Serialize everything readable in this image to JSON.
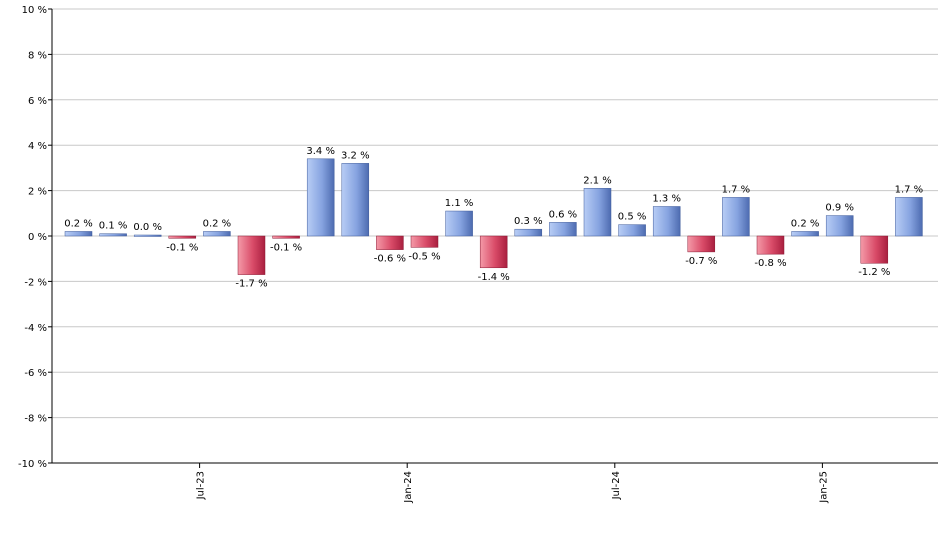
{
  "chart_data": {
    "type": "bar",
    "title": "",
    "xlabel": "",
    "ylabel": "",
    "ylim": [
      -10,
      10
    ],
    "y_ticks": [
      10,
      8,
      6,
      4,
      2,
      0,
      -2,
      -4,
      -6,
      -8,
      -10
    ],
    "y_tick_labels": [
      "10 %",
      "8 %",
      "6 %",
      "4 %",
      "2 %",
      "0 %",
      "-2 %",
      "-4 %",
      "-6 %",
      "-8 %",
      "-10 %"
    ],
    "x_ticks": [
      {
        "label": "Jul-23",
        "index": 3.5
      },
      {
        "label": "Jan-24",
        "index": 9.5
      },
      {
        "label": "Jul-24",
        "index": 15.5
      },
      {
        "label": "Jan-25",
        "index": 21.5
      }
    ],
    "values": [
      0.2,
      0.1,
      0.0,
      -0.1,
      0.2,
      -1.7,
      -0.1,
      3.4,
      3.2,
      -0.6,
      -0.5,
      1.1,
      -1.4,
      0.3,
      0.6,
      2.1,
      0.5,
      1.3,
      -0.7,
      1.7,
      -0.8,
      0.2,
      0.9,
      -1.2,
      1.7
    ],
    "labels": [
      "0.2 %",
      "0.1 %",
      "0.0 %",
      "-0.1 %",
      "0.2 %",
      "-1.7 %",
      "-0.1 %",
      "3.4 %",
      "3.2 %",
      "-0.6 %",
      "-0.5 %",
      "1.1 %",
      "-1.4 %",
      "0.3 %",
      "0.6 %",
      "2.1 %",
      "0.5 %",
      "1.3 %",
      "-0.7 %",
      "1.7 %",
      "-0.8 %",
      "0.2 %",
      "0.9 %",
      "-1.2 %",
      "1.7 %"
    ],
    "grid": true,
    "colors": {
      "positive_light": "#b8cdf5",
      "positive_dark": "#5272b8",
      "negative_light": "#f0889a",
      "negative_dark": "#b32545",
      "grid": "#c8c8c8",
      "axis": "#000000"
    }
  }
}
